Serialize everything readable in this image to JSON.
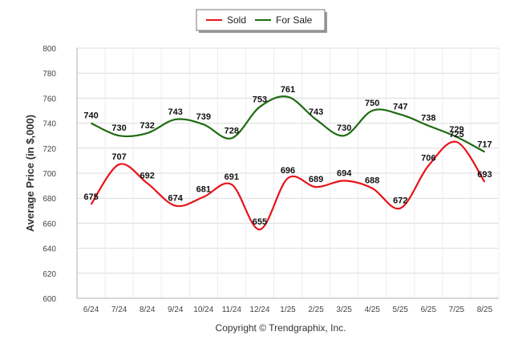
{
  "chart_data": {
    "type": "line",
    "title": "",
    "xlabel": "",
    "ylabel": "Average Price (in $,000)",
    "ylim": [
      600,
      800
    ],
    "yticks": [
      600,
      620,
      640,
      660,
      680,
      700,
      720,
      740,
      760,
      780,
      800
    ],
    "grid": true,
    "legend_position": "top-center",
    "categories": [
      "6/24",
      "7/24",
      "8/24",
      "9/24",
      "10/24",
      "11/24",
      "12/24",
      "1/25",
      "2/25",
      "3/25",
      "4/25",
      "5/25",
      "6/25",
      "7/25",
      "8/25"
    ],
    "series": [
      {
        "name": "Sold",
        "color": "#e8131b",
        "values": [
          675,
          707,
          692,
          674,
          681,
          691,
          655,
          696,
          689,
          694,
          688,
          672,
          706,
          725,
          693
        ]
      },
      {
        "name": "For Sale",
        "color": "#1f6b12",
        "values": [
          740,
          730,
          732,
          743,
          739,
          728,
          753,
          761,
          743,
          730,
          750,
          747,
          738,
          729,
          717
        ]
      }
    ]
  },
  "footer": {
    "credit": "Copyright © Trendgraphix, Inc."
  }
}
